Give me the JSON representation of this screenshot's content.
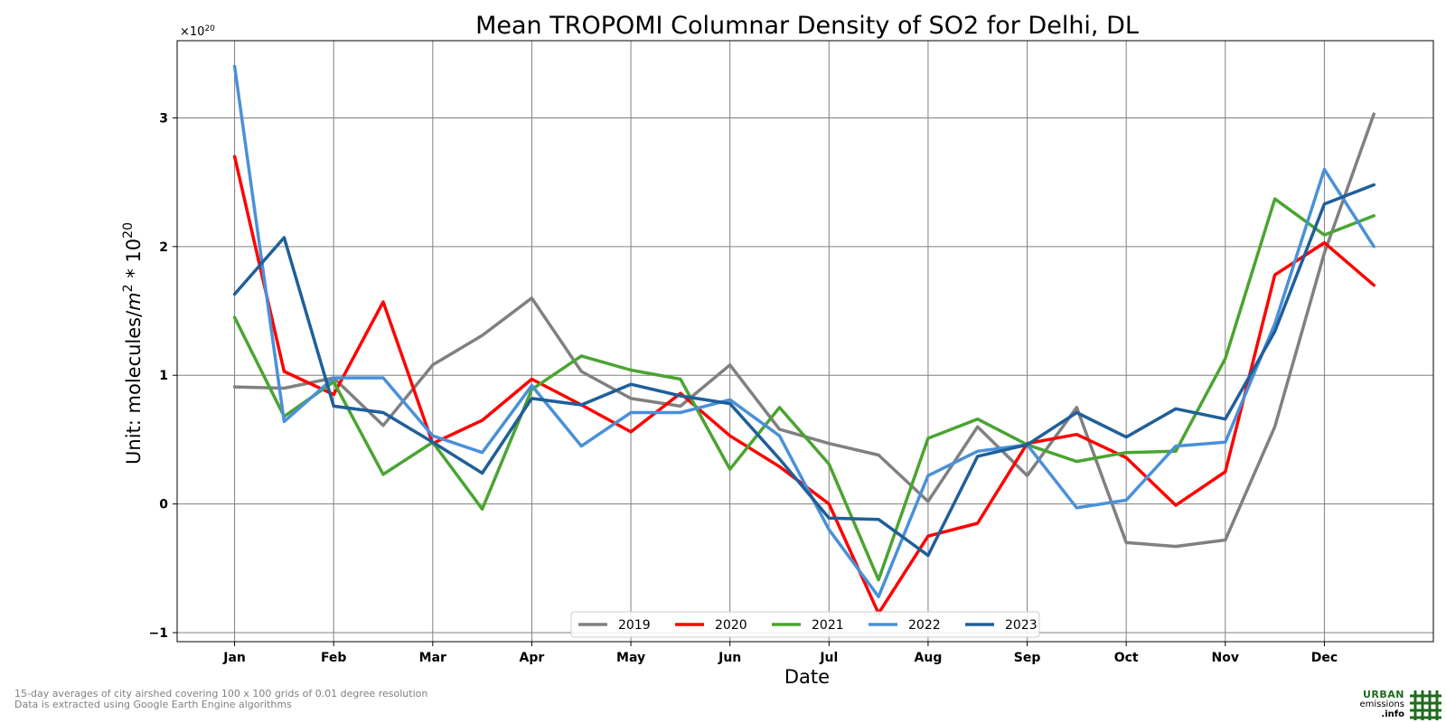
{
  "chart_data": {
    "type": "line",
    "title": "Mean TROPOMI Columnar Density of SO2 for Delhi, DL",
    "xlabel": "Date",
    "ylabel": "Unit: molecules/m² * 10²⁰",
    "ylabel_pre": "Unit: molecules/",
    "ylabel_unit_m": "m",
    "ylabel_unit_exp": "2",
    "ylabel_mid": " * 10",
    "ylabel_exp": "20",
    "offset_label": "×10²⁰",
    "offset_base": "×10",
    "offset_exp": "20",
    "x": [
      0,
      0.5,
      1,
      1.5,
      2,
      2.5,
      3,
      3.5,
      4,
      4.5,
      5,
      5.5,
      6,
      6.5,
      7,
      7.5,
      8,
      8.5,
      9,
      9.5,
      10,
      10.5,
      11,
      11.5
    ],
    "categories": [
      "Jan",
      "Feb",
      "Mar",
      "Apr",
      "May",
      "Jun",
      "Jul",
      "Aug",
      "Sep",
      "Oct",
      "Nov",
      "Dec"
    ],
    "xlim": [
      -0.58,
      12.1
    ],
    "ylim": [
      -1.07,
      3.6
    ],
    "yticks": [
      -1,
      0,
      1,
      2,
      3
    ],
    "ytick_labels": [
      "−1",
      "0",
      "1",
      "2",
      "3"
    ],
    "grid": true,
    "legend_placement": "lower center",
    "series": [
      {
        "name": "2019",
        "color": "#808080",
        "values": [
          0.91,
          0.9,
          0.98,
          0.61,
          1.08,
          1.31,
          1.6,
          1.03,
          0.82,
          0.76,
          1.08,
          0.58,
          0.47,
          0.38,
          0.02,
          0.6,
          0.22,
          0.75,
          -0.3,
          -0.33,
          -0.28,
          0.6,
          1.95,
          3.03
        ]
      },
      {
        "name": "2020",
        "color": "#ff0000",
        "values": [
          2.7,
          1.03,
          0.85,
          1.57,
          0.47,
          0.65,
          0.97,
          0.77,
          0.56,
          0.86,
          0.53,
          0.29,
          0.0,
          -0.85,
          -0.25,
          -0.15,
          0.47,
          0.54,
          0.36,
          -0.01,
          0.25,
          1.78,
          2.03,
          1.7
        ]
      },
      {
        "name": "2021",
        "color": "#4aa431",
        "values": [
          1.45,
          0.68,
          0.95,
          0.23,
          0.48,
          -0.04,
          0.89,
          1.15,
          1.04,
          0.97,
          0.27,
          0.75,
          0.31,
          -0.59,
          0.51,
          0.66,
          0.46,
          0.33,
          0.4,
          0.41,
          1.13,
          2.37,
          2.09,
          2.24
        ]
      },
      {
        "name": "2022",
        "color": "#4a90d9",
        "values": [
          3.4,
          0.64,
          0.98,
          0.98,
          0.53,
          0.4,
          0.92,
          0.45,
          0.71,
          0.71,
          0.81,
          0.53,
          -0.2,
          -0.72,
          0.22,
          0.41,
          0.46,
          -0.03,
          0.03,
          0.45,
          0.48,
          1.4,
          2.6,
          2.0
        ]
      },
      {
        "name": "2023",
        "color": "#1f5f99",
        "values": [
          1.63,
          2.07,
          0.76,
          0.71,
          0.48,
          0.24,
          0.82,
          0.77,
          0.93,
          0.84,
          0.78,
          0.35,
          -0.11,
          -0.12,
          -0.4,
          0.37,
          0.46,
          0.71,
          0.52,
          0.74,
          0.66,
          1.34,
          2.33,
          2.48
        ]
      }
    ]
  },
  "footnote": {
    "line1": "15-day averages of city airshed covering 100 x 100 grids of 0.01 degree resolution",
    "line2": "Data is extracted using Google Earth Engine algorithms"
  },
  "logo": {
    "line1": "URBAN",
    "line2": "emissions",
    "line3": ".info",
    "color": "#1e6b1e"
  }
}
